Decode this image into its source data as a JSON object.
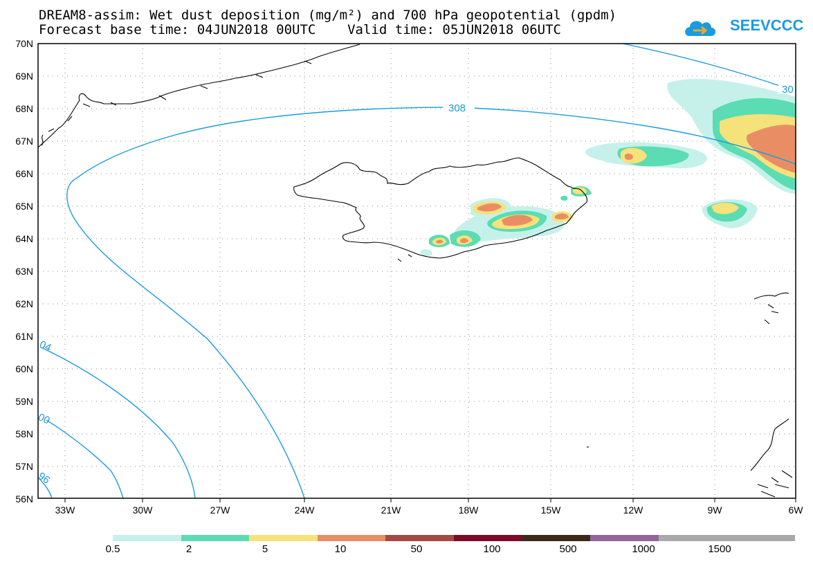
{
  "header": {
    "title_line1": "DREAM8-assim: Wet dust deposition (mg/m²) and 700 hPa geopotential (gpdm)",
    "title_line2": "Forecast base time: 04JUN2018 00UTC    Valid time: 05JUN2018 06UTC",
    "logo_text": "SEEVCCC"
  },
  "map": {
    "lat_labels": [
      "70N",
      "69N",
      "68N",
      "67N",
      "66N",
      "65N",
      "64N",
      "63N",
      "62N",
      "61N",
      "60N",
      "59N",
      "58N",
      "57N",
      "56N"
    ],
    "lon_labels": [
      "33W",
      "30W",
      "27W",
      "24W",
      "21W",
      "18W",
      "15W",
      "12W",
      "9W",
      "6W"
    ],
    "contour_labels": [
      "308",
      "30",
      "04",
      "00",
      "96"
    ],
    "land_color": "#ffffff",
    "contour_color": "#1a9be0"
  },
  "colorbar": {
    "labels": [
      "0.5",
      "2",
      "5",
      "10",
      "50",
      "100",
      "500",
      "1000",
      "1500"
    ],
    "colors": [
      "#c6f1eb",
      "#5bdcb2",
      "#f6e27a",
      "#e98e64",
      "#a44a45",
      "#7c0a2a",
      "#3a2a1c",
      "#936598",
      "#a9a9a9",
      "#a9a9a9"
    ]
  }
}
